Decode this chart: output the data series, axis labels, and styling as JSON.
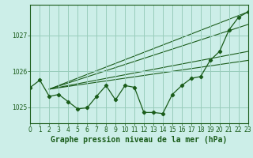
{
  "title": "Graphe pression niveau de la mer (hPa)",
  "background_color": "#cceee8",
  "grid_color": "#99ccbb",
  "line_color": "#1a5c1a",
  "x_values": [
    0,
    1,
    2,
    3,
    4,
    5,
    6,
    7,
    8,
    9,
    10,
    11,
    12,
    13,
    14,
    15,
    16,
    17,
    18,
    19,
    20,
    21,
    22,
    23
  ],
  "y_values": [
    1025.55,
    1025.75,
    1025.3,
    1025.35,
    1025.15,
    1024.95,
    1024.98,
    1025.3,
    1025.6,
    1025.2,
    1025.6,
    1025.55,
    1024.85,
    1024.85,
    1024.82,
    1025.35,
    1025.6,
    1025.8,
    1025.85,
    1026.3,
    1026.55,
    1027.15,
    1027.5,
    1027.65
  ],
  "trend_lines": [
    {
      "x0": 2,
      "y0": 1025.5,
      "x1": 23,
      "y1": 1027.65
    },
    {
      "x0": 2,
      "y0": 1025.5,
      "x1": 23,
      "y1": 1027.3
    },
    {
      "x0": 2,
      "y0": 1025.5,
      "x1": 23,
      "y1": 1026.55
    },
    {
      "x0": 2,
      "y0": 1025.5,
      "x1": 23,
      "y1": 1026.3
    }
  ],
  "ylim_min": 1024.55,
  "ylim_max": 1027.85,
  "yticks": [
    1025,
    1026,
    1027
  ],
  "xlim_min": 0,
  "xlim_max": 23,
  "title_fontsize": 7.0,
  "tick_fontsize": 5.5
}
